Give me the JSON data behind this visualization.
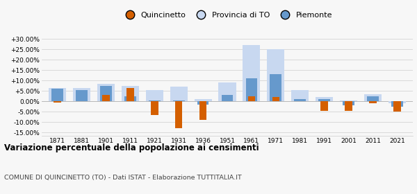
{
  "years": [
    1871,
    1881,
    1901,
    1911,
    1921,
    1931,
    1936,
    1951,
    1961,
    1971,
    1981,
    1991,
    2001,
    2011,
    2021
  ],
  "quincinetto": [
    -0.4,
    null,
    3.0,
    6.5,
    -6.5,
    -13.0,
    -9.0,
    null,
    2.5,
    2.0,
    null,
    -4.5,
    -4.5,
    -1.0,
    -5.0
  ],
  "provincia_to": [
    6.5,
    6.5,
    8.5,
    7.5,
    5.5,
    7.0,
    1.0,
    9.0,
    27.0,
    25.0,
    5.5,
    2.0,
    0.5,
    3.5,
    -1.0
  ],
  "piemonte": [
    6.0,
    5.5,
    7.5,
    2.5,
    0.5,
    0.5,
    -1.5,
    3.0,
    11.0,
    13.0,
    1.0,
    1.0,
    -2.0,
    2.5,
    -2.5
  ],
  "color_quincinetto": "#d45f00",
  "color_provincia": "#c8d8f0",
  "color_piemonte": "#6699cc",
  "title": "Variazione percentuale della popolazione ai censimenti",
  "subtitle": "COMUNE DI QUINCINETTO (TO) - Dati ISTAT - Elaborazione TUTTITALIA.IT",
  "ylim": [
    -16.5,
    32
  ],
  "yticks": [
    -15,
    -10,
    -5,
    0,
    5,
    10,
    15,
    20,
    25,
    30
  ],
  "background_color": "#f7f7f7"
}
